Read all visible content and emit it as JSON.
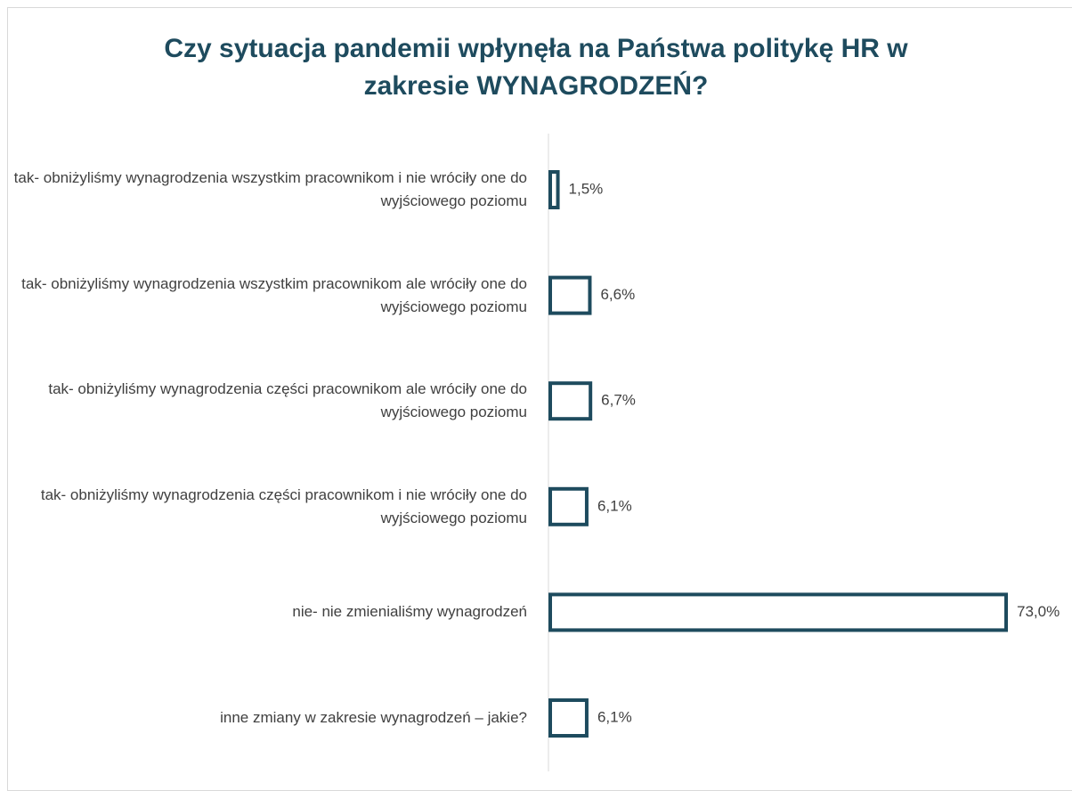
{
  "chart_data": {
    "type": "hbar",
    "title": "Czy sytuacja pandemii wpłynęła na Państwa politykę HR w zakresie WYNAGRODZEŃ?",
    "categories": [
      "tak- obniżyliśmy wynagrodzenia wszystkim pracownikom i nie wróciły one do wyjściowego poziomu",
      "tak- obniżyliśmy wynagrodzenia wszystkim pracownikom ale wróciły one do wyjściowego poziomu",
      "tak- obniżyliśmy wynagrodzenia części pracownikom ale wróciły one do wyjściowego poziomu",
      "tak- obniżyliśmy wynagrodzenia części  pracownikom i nie wróciły one do wyjściowego poziomu",
      "nie- nie zmienialiśmy wynagrodzeń",
      "inne zmiany w zakresie wynagrodzeń – jakie?"
    ],
    "values": [
      1.5,
      6.6,
      6.7,
      6.1,
      73.0,
      6.1
    ],
    "value_labels": [
      "1,5%",
      "6,6%",
      "6,7%",
      "6,1%",
      "73,0%",
      "6,1%"
    ],
    "color": "#1e4b5e"
  }
}
